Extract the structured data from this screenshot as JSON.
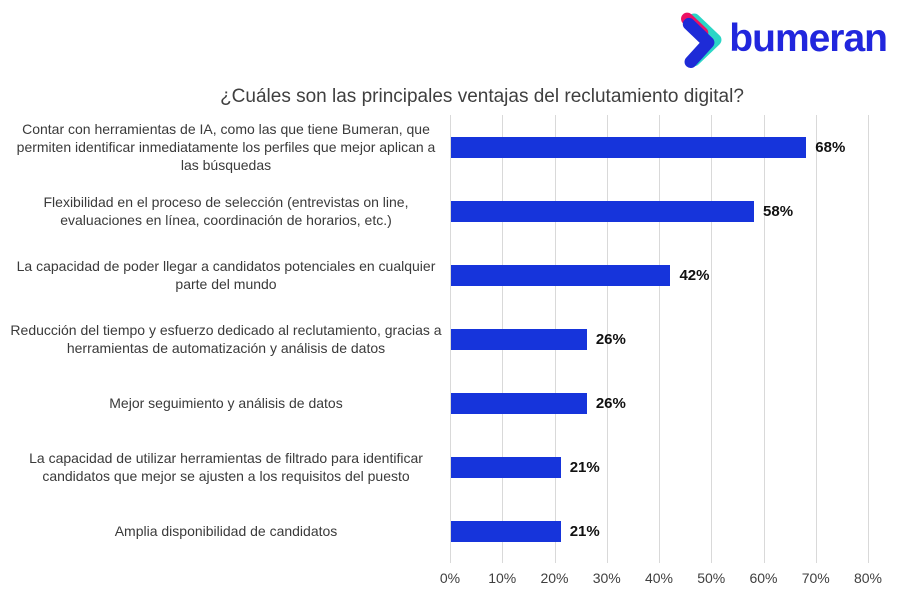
{
  "logo": {
    "text": "bumeran",
    "colors": {
      "blue": "#1E2BD7",
      "teal": "#2BD6C6",
      "pink": "#EC1164",
      "wordmark": "#2126DD"
    }
  },
  "chart_data": {
    "type": "bar",
    "orientation": "horizontal",
    "title": "¿Cuáles son las principales ventajas del reclutamiento digital?",
    "categories": [
      "Contar con herramientas de IA, como las que tiene Bumeran, que permiten identificar inmediatamente los perfiles que mejor aplican a las búsquedas",
      "Flexibilidad en el proceso de selección (entrevistas on line, evaluaciones en línea, coordinación de horarios, etc.)",
      "La capacidad de poder llegar a candidatos potenciales en cualquier parte del mundo",
      "Reducción del tiempo y esfuerzo dedicado al reclutamiento, gracias a herramientas de automatización y análisis de datos",
      "Mejor seguimiento y análisis de datos",
      "La capacidad de utilizar herramientas de filtrado para identificar candidatos que mejor se ajusten a los requisitos del puesto",
      "Amplia disponibilidad de candidatos"
    ],
    "values": [
      68,
      58,
      42,
      26,
      26,
      21,
      21
    ],
    "value_labels": [
      "68%",
      "58%",
      "42%",
      "26%",
      "26%",
      "21%",
      "21%"
    ],
    "xlabel": "",
    "ylabel": "",
    "xlim": [
      0,
      80
    ],
    "x_ticks": [
      "0%",
      "10%",
      "20%",
      "30%",
      "40%",
      "50%",
      "60%",
      "70%",
      "80%"
    ],
    "bar_color": "#1634DB",
    "grid": true,
    "gridline_color": "#d9d9d9",
    "legend": false
  }
}
